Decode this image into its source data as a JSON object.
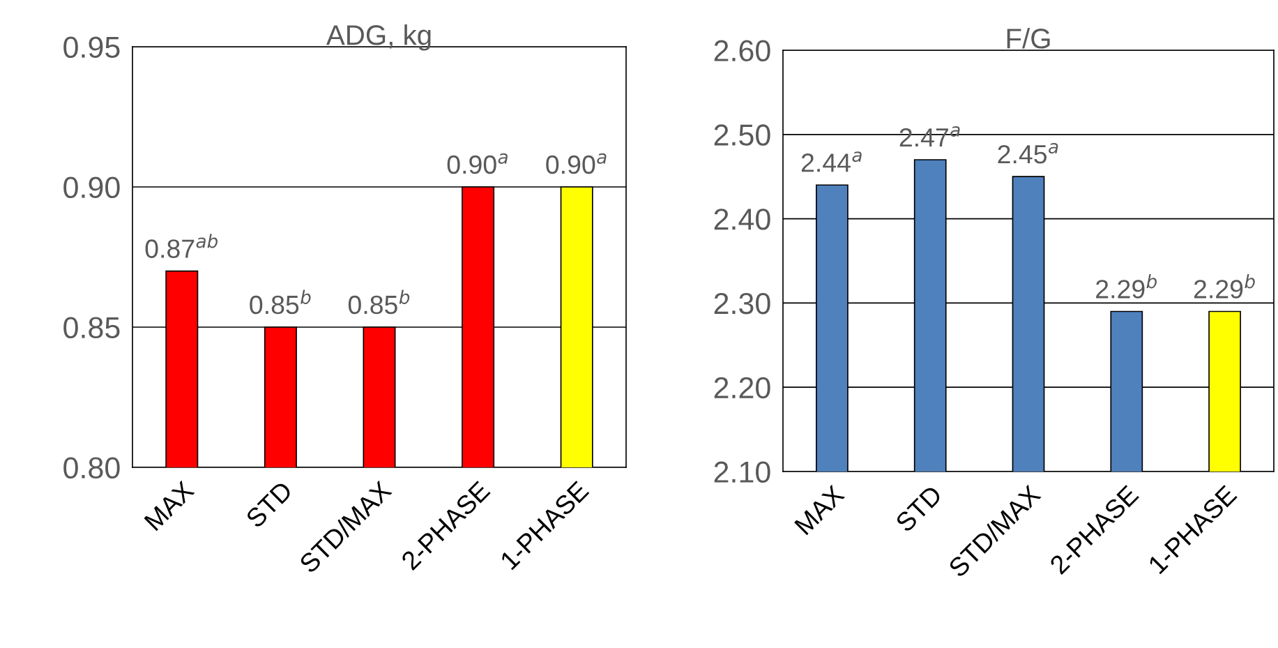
{
  "chart_data": [
    {
      "type": "bar",
      "title": "ADG, kg",
      "categories": [
        "MAX",
        "STD",
        "STD/MAX",
        "2-PHASE",
        "1-PHASE"
      ],
      "values": [
        0.87,
        0.85,
        0.85,
        0.9,
        0.9
      ],
      "colors": [
        "#ff0000",
        "#ff0000",
        "#ff0000",
        "#ff0000",
        "#ffff00"
      ],
      "value_labels": [
        "0.87$^{ab}$",
        "0.85$^{b}$",
        "0.85$^{b}$",
        "0.90$^{a}$",
        "0.90$^{a}$"
      ],
      "ylim": [
        0.8,
        0.95
      ],
      "yticks": [
        {
          "value": 0.8,
          "label": "0.80"
        },
        {
          "value": 0.85,
          "label": "0.85"
        },
        {
          "value": 0.9,
          "label": "0.90"
        },
        {
          "value": 0.95,
          "label": "0.95"
        }
      ],
      "grid": "y",
      "legend": false
    },
    {
      "type": "bar",
      "title": "F/G",
      "categories": [
        "MAX",
        "STD",
        "STD/MAX",
        "2-PHASE",
        "1-PHASE"
      ],
      "values": [
        2.44,
        2.47,
        2.45,
        2.29,
        2.29
      ],
      "colors": [
        "#4f81bd",
        "#4f81bd",
        "#4f81bd",
        "#4f81bd",
        "#ffff00"
      ],
      "value_labels": [
        "2.44$^{a}$",
        "2.47$^{a}$",
        "2.45$^{a}$",
        "2.29$^{b}$",
        "2.29$^{b}$"
      ],
      "ylim": [
        2.1,
        2.6
      ],
      "yticks": [
        {
          "value": 2.1,
          "label": "2.10"
        },
        {
          "value": 2.2,
          "label": "2.20"
        },
        {
          "value": 2.3,
          "label": "2.30"
        },
        {
          "value": 2.4,
          "label": "2.40"
        },
        {
          "value": 2.5,
          "label": "2.50"
        },
        {
          "value": 2.6,
          "label": "2.60"
        }
      ],
      "grid": "y",
      "legend": false
    }
  ]
}
